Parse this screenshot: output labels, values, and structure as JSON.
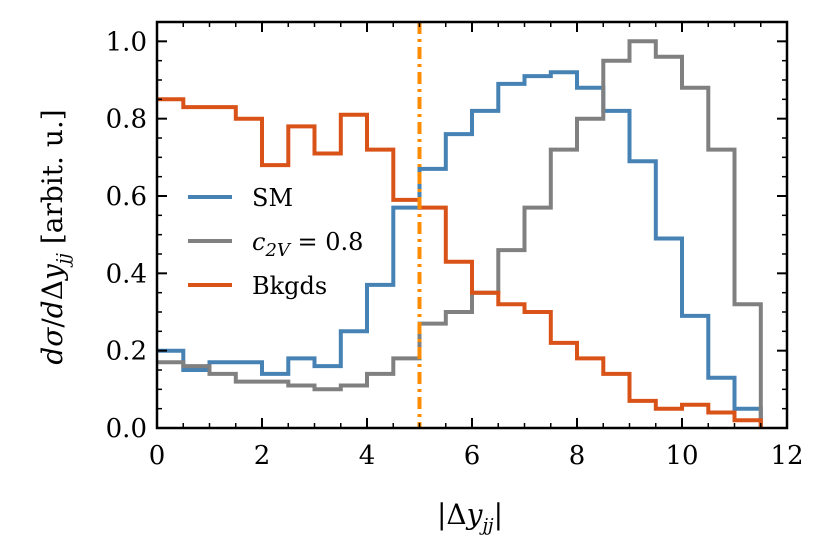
{
  "chart_data": {
    "type": "line",
    "style": "step-histogram",
    "xlabel": "|Δy_jj|",
    "ylabel": "dσ/dΔy_jj [arbit. u.]",
    "xlim": [
      0,
      12
    ],
    "ylim": [
      0,
      1.05
    ],
    "xticks": [
      0,
      2,
      4,
      6,
      8,
      10,
      12
    ],
    "xtick_labels": [
      "0",
      "2",
      "4",
      "6",
      "8",
      "10",
      "12"
    ],
    "yticks": [
      0.0,
      0.2,
      0.4,
      0.6,
      0.8,
      1.0
    ],
    "ytick_labels": [
      "0.0",
      "0.2",
      "0.4",
      "0.6",
      "0.8",
      "1.0"
    ],
    "grid": false,
    "legend_position": "center-left",
    "bin_edges": [
      0,
      0.5,
      1,
      1.5,
      2,
      2.5,
      3,
      3.5,
      4,
      4.5,
      5,
      5.5,
      6,
      6.5,
      7,
      7.5,
      8,
      8.5,
      9,
      9.5,
      10,
      10.5,
      11,
      11.5
    ],
    "series": [
      {
        "name": "SM",
        "label": "SM",
        "color": "#4682b4",
        "values": [
          0.2,
          0.15,
          0.17,
          0.17,
          0.14,
          0.18,
          0.16,
          0.25,
          0.37,
          0.57,
          0.67,
          0.76,
          0.82,
          0.89,
          0.91,
          0.92,
          0.88,
          0.82,
          0.69,
          0.49,
          0.29,
          0.13,
          0.05
        ]
      },
      {
        "name": "c_2V = 0.8",
        "label_math": "c",
        "label_sub": "2V",
        "label_rest": " = 0.8",
        "color": "#808080",
        "values": [
          0.17,
          0.16,
          0.14,
          0.12,
          0.12,
          0.11,
          0.1,
          0.11,
          0.14,
          0.18,
          0.27,
          0.3,
          0.35,
          0.46,
          0.57,
          0.72,
          0.8,
          0.95,
          1.0,
          0.96,
          0.88,
          0.72,
          0.32
        ]
      },
      {
        "name": "Bkgds",
        "label": "Bkgds",
        "color": "#d95319",
        "values": [
          0.85,
          0.83,
          0.83,
          0.8,
          0.68,
          0.78,
          0.71,
          0.81,
          0.72,
          0.59,
          0.57,
          0.43,
          0.35,
          0.32,
          0.3,
          0.22,
          0.18,
          0.14,
          0.07,
          0.05,
          0.06,
          0.04,
          0.02
        ]
      }
    ],
    "vline": {
      "x": 5.0,
      "color": "#ff8c00",
      "style": "dash-dot"
    }
  }
}
